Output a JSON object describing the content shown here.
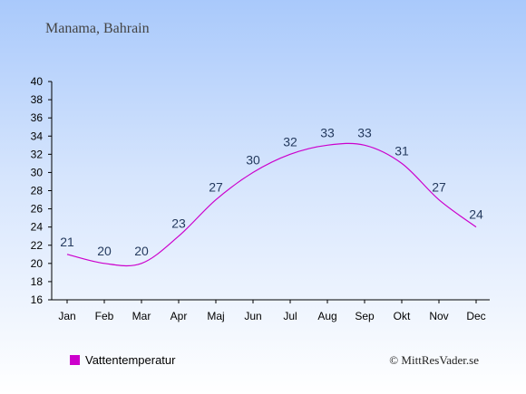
{
  "chart_data": {
    "type": "line",
    "title": "Manama, Bahrain",
    "categories": [
      "Jan",
      "Feb",
      "Mar",
      "Apr",
      "Maj",
      "Jun",
      "Jul",
      "Aug",
      "Sep",
      "Okt",
      "Nov",
      "Dec"
    ],
    "series": [
      {
        "name": "Vattentemperatur",
        "values": [
          21,
          20,
          20,
          23,
          27,
          30,
          32,
          33,
          33,
          31,
          27,
          24
        ],
        "color": "#cc00cc"
      }
    ],
    "ylim": [
      16,
      40
    ],
    "yticks": [
      16,
      18,
      20,
      22,
      24,
      26,
      28,
      30,
      32,
      34,
      36,
      38,
      40
    ],
    "xlabel": "",
    "ylabel": "",
    "grid": false,
    "legend_position": "bottom-left"
  },
  "footer": {
    "copyright": "© MittResVader.se"
  }
}
